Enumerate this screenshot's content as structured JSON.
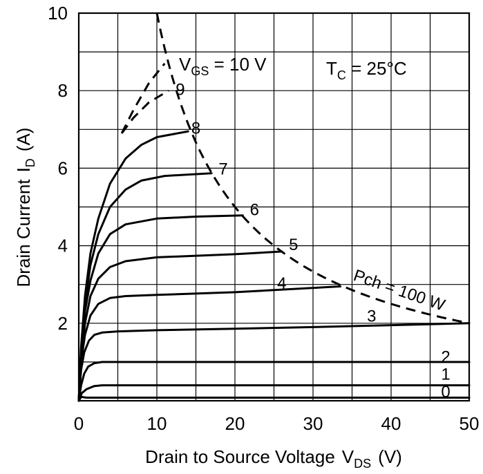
{
  "chart_data": {
    "type": "line",
    "xlabel": "Drain to Source Voltage",
    "xlabel_sub": "V",
    "xlabel_sub_subscript": "DS",
    "xlabel_unit": "(V)",
    "ylabel": "Drain Current",
    "ylabel_sym": "I",
    "ylabel_sub": "D",
    "ylabel_unit": "(A)",
    "xlim": [
      0,
      50
    ],
    "ylim": [
      0,
      10
    ],
    "x_ticks": [
      "0",
      "10",
      "20",
      "30",
      "40",
      "50"
    ],
    "y_ticks": [
      "2",
      "4",
      "6",
      "8",
      "10"
    ],
    "x_tick_values": [
      0,
      10,
      20,
      30,
      40,
      50
    ],
    "y_tick_values": [
      2,
      4,
      6,
      8,
      10
    ],
    "grid": true,
    "annotations": {
      "vgs_label": "V",
      "vgs_sub": "GS",
      "vgs_value": " = 10 V",
      "tc_label": "T",
      "tc_sub": "C",
      "tc_value": " = 25°C",
      "pch_label": "Pch = 100 W"
    },
    "series": [
      {
        "name": "0",
        "points": [
          [
            0,
            0
          ],
          [
            0.3,
            0.1
          ],
          [
            1,
            0.08
          ],
          [
            50,
            0.08
          ]
        ]
      },
      {
        "name": "1",
        "points": [
          [
            0,
            0
          ],
          [
            0.4,
            0.2
          ],
          [
            1,
            0.3
          ],
          [
            2,
            0.38
          ],
          [
            3,
            0.4
          ],
          [
            50,
            0.4
          ]
        ]
      },
      {
        "name": "2",
        "points": [
          [
            0,
            0
          ],
          [
            0.3,
            0.4
          ],
          [
            0.7,
            0.7
          ],
          [
            1.2,
            0.88
          ],
          [
            2,
            0.97
          ],
          [
            3,
            1.0
          ],
          [
            50,
            1.0
          ]
        ]
      },
      {
        "name": "3",
        "points": [
          [
            0,
            0
          ],
          [
            0.3,
            0.8
          ],
          [
            0.7,
            1.25
          ],
          [
            1.3,
            1.55
          ],
          [
            2,
            1.7
          ],
          [
            3,
            1.76
          ],
          [
            5,
            1.79
          ],
          [
            10,
            1.82
          ],
          [
            20,
            1.86
          ],
          [
            30,
            1.9
          ],
          [
            40,
            1.95
          ],
          [
            50,
            2.0
          ]
        ]
      },
      {
        "name": "4",
        "points": [
          [
            0,
            0
          ],
          [
            0.3,
            1.0
          ],
          [
            0.8,
            1.7
          ],
          [
            1.5,
            2.2
          ],
          [
            2.5,
            2.5
          ],
          [
            4,
            2.65
          ],
          [
            6,
            2.7
          ],
          [
            10,
            2.73
          ],
          [
            20,
            2.8
          ],
          [
            33.5,
            2.95
          ]
        ]
      },
      {
        "name": "5",
        "points": [
          [
            0,
            0
          ],
          [
            0.3,
            1.1
          ],
          [
            0.8,
            2.0
          ],
          [
            1.5,
            2.7
          ],
          [
            2.5,
            3.15
          ],
          [
            4,
            3.45
          ],
          [
            6,
            3.6
          ],
          [
            10,
            3.7
          ],
          [
            20,
            3.78
          ],
          [
            26,
            3.85
          ]
        ]
      },
      {
        "name": "6",
        "points": [
          [
            0,
            0
          ],
          [
            0.3,
            1.2
          ],
          [
            0.8,
            2.3
          ],
          [
            1.5,
            3.1
          ],
          [
            2.5,
            3.8
          ],
          [
            4,
            4.3
          ],
          [
            6,
            4.55
          ],
          [
            10,
            4.7
          ],
          [
            15,
            4.75
          ],
          [
            21,
            4.78
          ]
        ]
      },
      {
        "name": "7",
        "points": [
          [
            0,
            0
          ],
          [
            0.3,
            1.3
          ],
          [
            0.8,
            2.5
          ],
          [
            1.5,
            3.5
          ],
          [
            2.5,
            4.3
          ],
          [
            4,
            5.0
          ],
          [
            6,
            5.45
          ],
          [
            8,
            5.68
          ],
          [
            11,
            5.8
          ],
          [
            17,
            5.87
          ]
        ]
      },
      {
        "name": "8",
        "points": [
          [
            0,
            0
          ],
          [
            0.3,
            1.4
          ],
          [
            0.8,
            2.7
          ],
          [
            1.5,
            3.8
          ],
          [
            2.5,
            4.7
          ],
          [
            4,
            5.6
          ],
          [
            6,
            6.25
          ],
          [
            8,
            6.6
          ],
          [
            10,
            6.8
          ],
          [
            14,
            6.95
          ]
        ]
      },
      {
        "name": "9",
        "points": [
          [
            5.5,
            6.9
          ],
          [
            7,
            7.3
          ],
          [
            9,
            7.7
          ],
          [
            11.5,
            8.0
          ]
        ]
      },
      {
        "name": "10",
        "points": [
          [
            5.5,
            6.9
          ],
          [
            7,
            7.5
          ],
          [
            9,
            8.2
          ],
          [
            11,
            8.7
          ]
        ]
      }
    ],
    "power_curve": {
      "name": "Pch = 100 W",
      "xstart": 10,
      "xend": 50
    }
  }
}
